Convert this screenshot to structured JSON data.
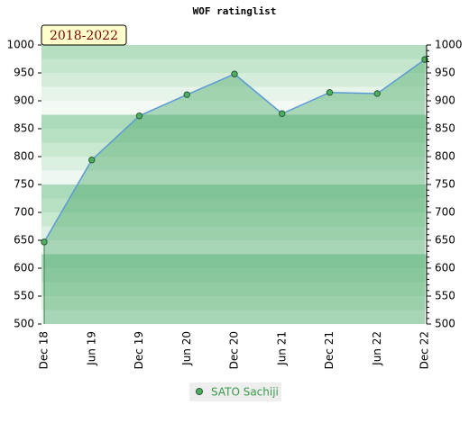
{
  "chart_data": {
    "type": "line",
    "title": "WOF ratinglist",
    "annotation": "2018-2022",
    "categories": [
      "Dec 18",
      "Jun 19",
      "Dec 19",
      "Jun 20",
      "Dec 20",
      "Jun 21",
      "Dec 21",
      "Jun 22",
      "Dec 22"
    ],
    "series": [
      {
        "name": "SATO Sachiji",
        "color": "#5b9bd5",
        "marker_color": "#4caf60",
        "values": [
          647,
          794,
          873,
          911,
          948,
          877,
          915,
          913,
          974
        ]
      }
    ],
    "ylim": [
      500,
      1000
    ],
    "yticks": [
      500,
      550,
      600,
      650,
      700,
      750,
      800,
      850,
      900,
      950,
      1000
    ],
    "y2lim": [
      500,
      1000
    ],
    "y2ticks": [
      500,
      550,
      600,
      650,
      700,
      750,
      800,
      850,
      900,
      950,
      1000
    ],
    "area": true
  }
}
